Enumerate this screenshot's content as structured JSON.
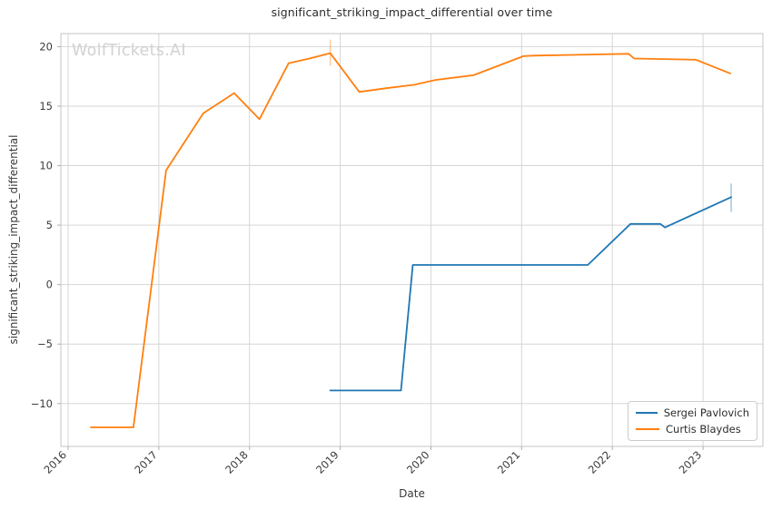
{
  "watermark": {
    "text": "WolfTickets.AI",
    "color": "#d2d2d2"
  },
  "chart_data": {
    "type": "line",
    "title": "significant_striking_impact_differential over time",
    "xlabel": "Date",
    "ylabel": "significant_striking_impact_differential",
    "legend_position": "lower right",
    "axes": {
      "xlim": [
        2015.92,
        2023.66
      ],
      "ylim": [
        -13.6,
        21.1
      ],
      "x_ticks": [
        2016,
        2017,
        2018,
        2019,
        2020,
        2021,
        2022,
        2023
      ],
      "x_tick_labels": [
        "2016",
        "2017",
        "2018",
        "2019",
        "2020",
        "2021",
        "2022",
        "2023"
      ],
      "y_ticks": [
        20,
        15,
        10,
        5,
        0,
        -5,
        -10
      ],
      "y_tick_labels": [
        "20",
        "15",
        "10",
        "5",
        "0",
        "−5",
        "−10"
      ],
      "grid": true
    },
    "style": {
      "grid_color": "#d6d6d6",
      "spine_color": "#c4c4c4",
      "tick_color": "#b0b0b0",
      "tick_label_color": "#3a3a3a",
      "line_width": 1.8
    },
    "series": [
      {
        "name": "Sergei Pavlovich",
        "color": "#1f77b4",
        "x": [
          2018.89,
          2019.67,
          2019.8,
          2021.73,
          2022.2,
          2022.53,
          2022.58,
          2023.31
        ],
        "y": [
          -8.9,
          -8.9,
          1.65,
          1.65,
          5.1,
          5.1,
          4.8,
          7.35
        ],
        "error_bar": {
          "x": 2023.31,
          "y_low": 6.1,
          "y_high": 8.5
        }
      },
      {
        "name": "Curtis Blaydes",
        "color": "#ff7f0e",
        "x": [
          2016.25,
          2016.72,
          2017.08,
          2017.49,
          2017.83,
          2018.11,
          2018.43,
          2018.66,
          2018.89,
          2019.21,
          2019.5,
          2019.82,
          2020.05,
          2020.47,
          2021.02,
          2021.13,
          2022.18,
          2022.24,
          2022.92,
          2023.3
        ],
        "y": [
          -12.0,
          -12.0,
          9.6,
          14.4,
          16.1,
          13.9,
          18.6,
          19.0,
          19.45,
          16.2,
          16.5,
          16.8,
          17.2,
          17.6,
          19.2,
          19.25,
          19.4,
          19.0,
          18.9,
          17.75
        ],
        "error_bar": {
          "x": 2018.89,
          "y_low": 18.4,
          "y_high": 20.6
        }
      }
    ]
  }
}
